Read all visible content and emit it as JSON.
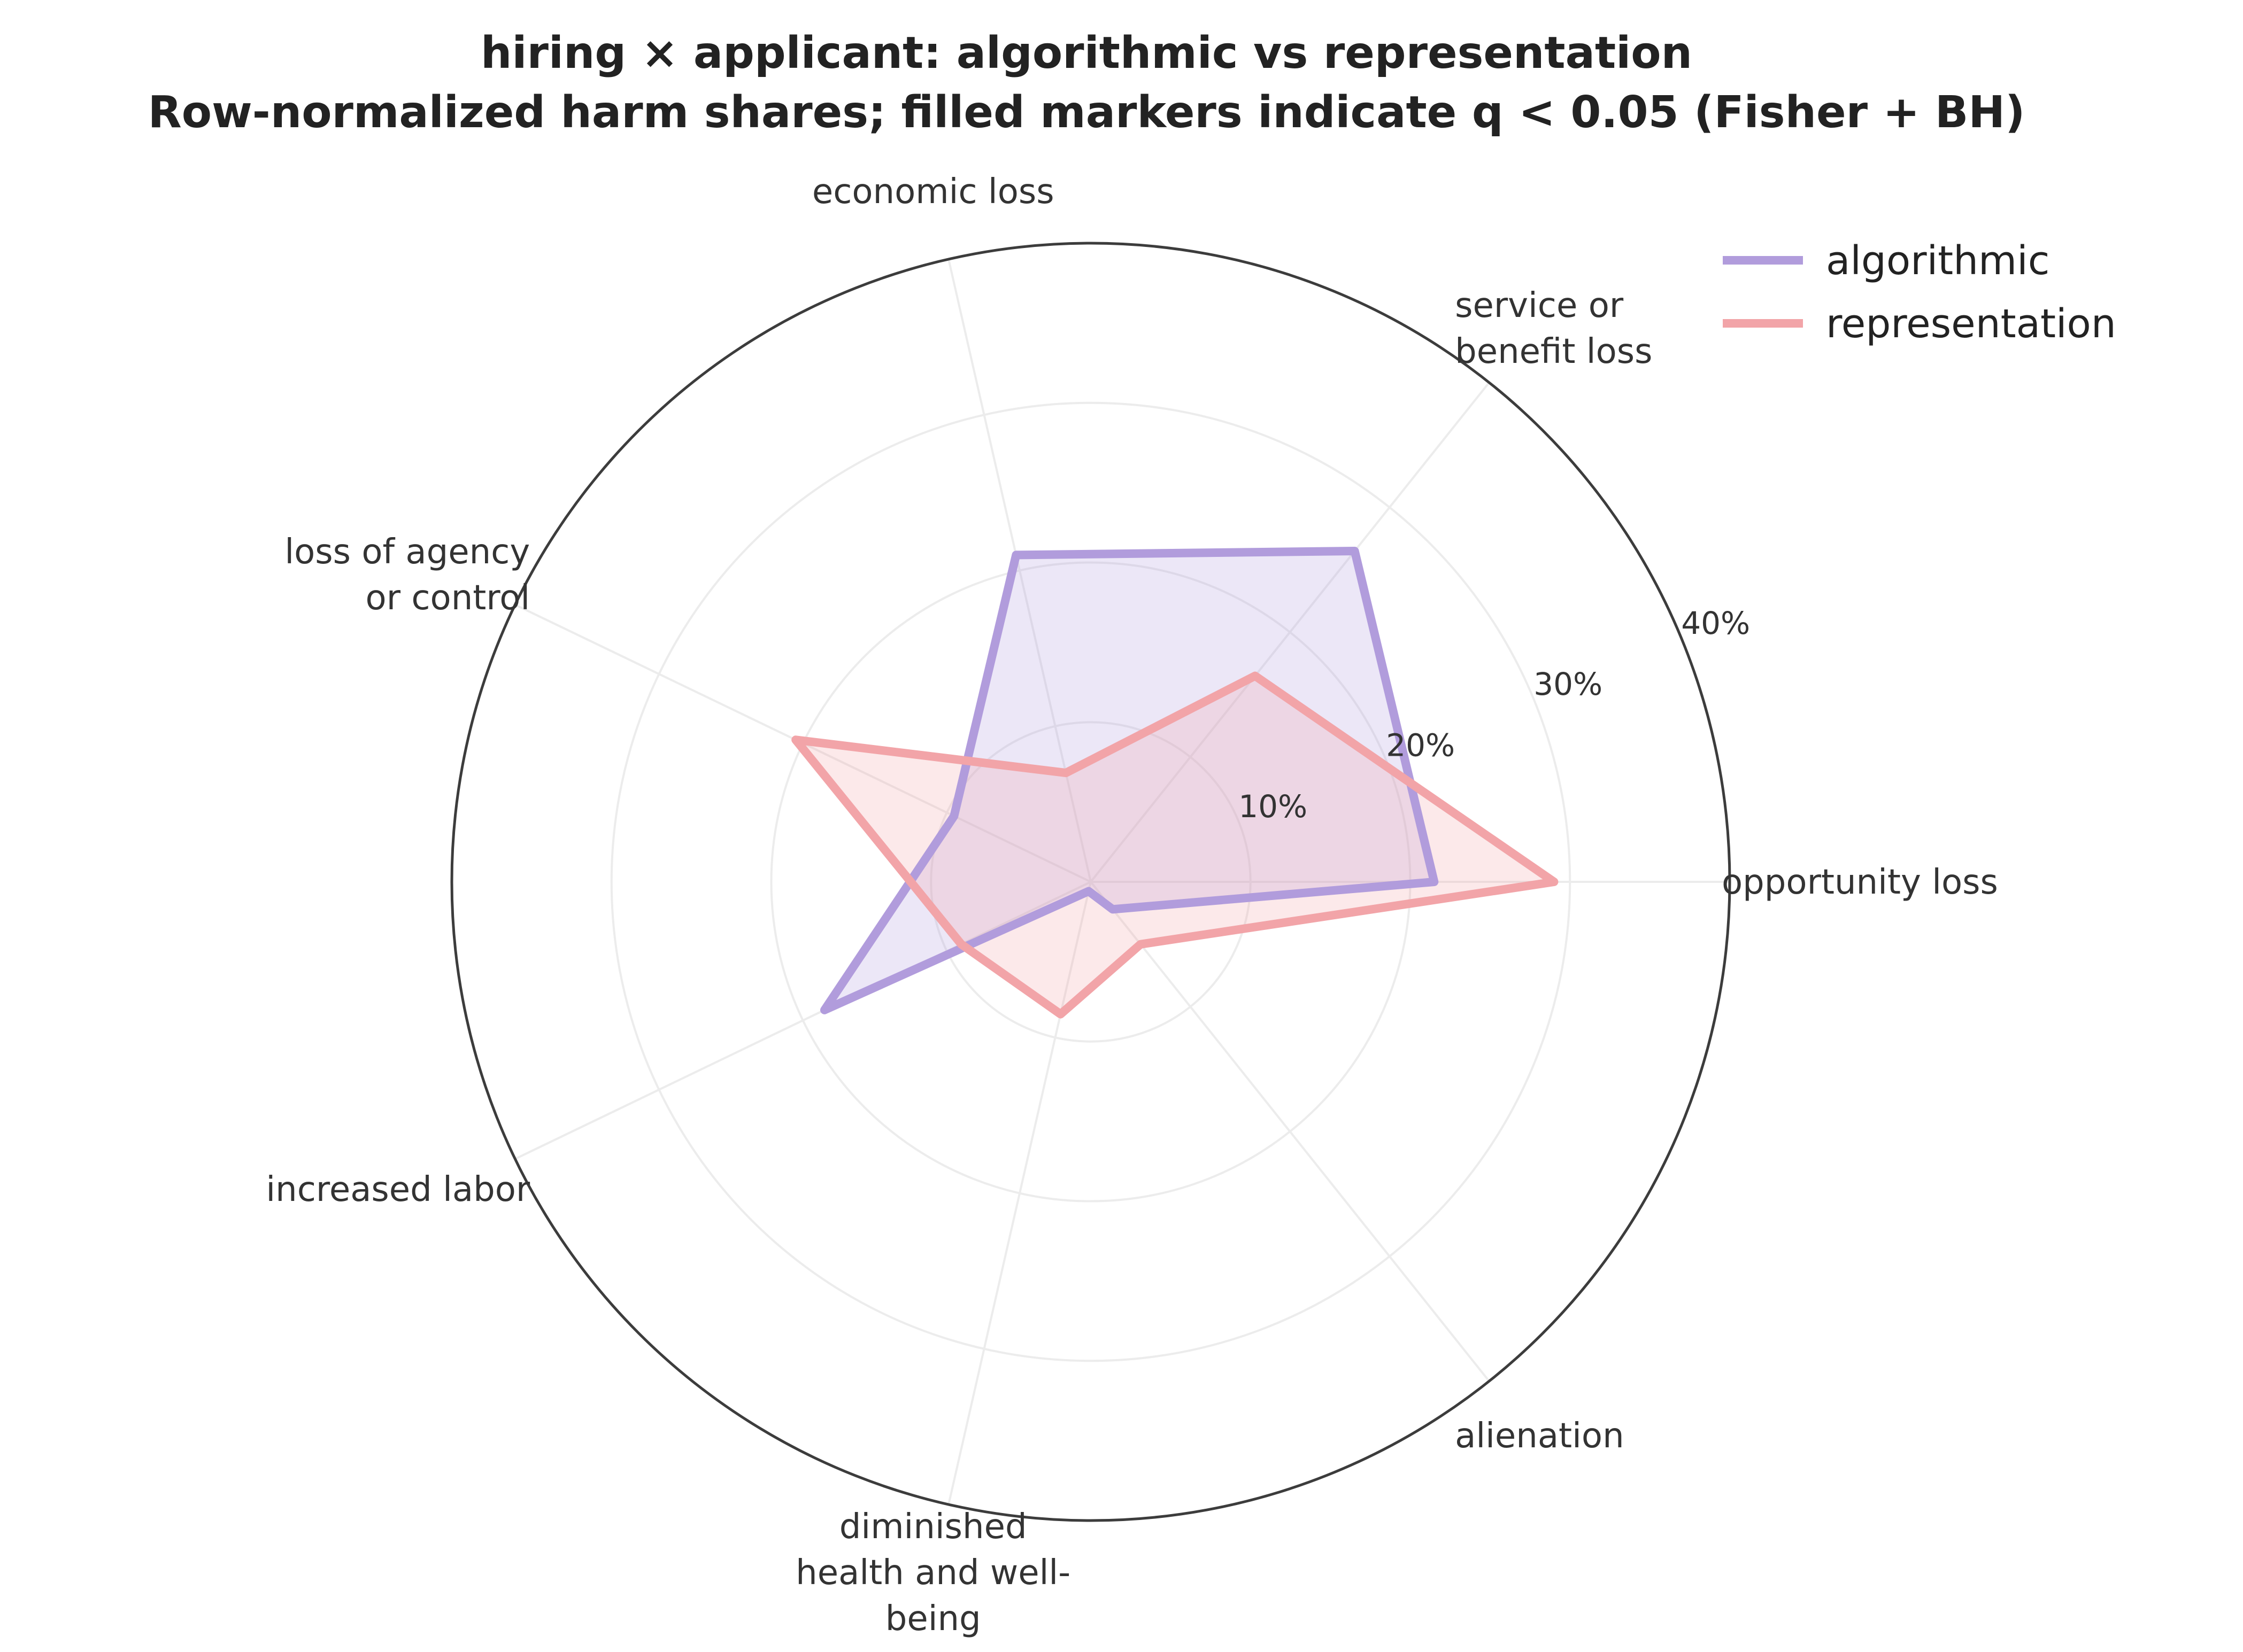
{
  "chart_data": {
    "type": "radar",
    "title_line1": "hiring × applicant: algorithmic vs representation",
    "title_line2": "Row-normalized harm shares; filled markers indicate q < 0.05 (Fisher + BH)",
    "categories": [
      [
        "opportunity loss"
      ],
      [
        "service or",
        "benefit loss"
      ],
      [
        "economic loss"
      ],
      [
        "loss of agency",
        "or control"
      ],
      [
        "increased labor"
      ],
      [
        "diminished",
        "health and well-",
        "being"
      ],
      [
        "alienation"
      ]
    ],
    "rlim": [
      0,
      40
    ],
    "r_ticks": [
      10,
      20,
      30,
      40
    ],
    "r_tick_labels": [
      "10%",
      "20%",
      "30%",
      "40%"
    ],
    "grid": true,
    "legend_position": "top-right",
    "series": [
      {
        "name": "algorithmic",
        "color": "#b19cdc",
        "values": [
          21.5,
          26.5,
          21.0,
          9.5,
          18.5,
          0.6,
          2.2
        ]
      },
      {
        "name": "representation",
        "color": "#f2a4a8",
        "values": [
          29.0,
          16.5,
          7.0,
          20.5,
          9.0,
          8.5,
          5.0
        ]
      }
    ]
  }
}
